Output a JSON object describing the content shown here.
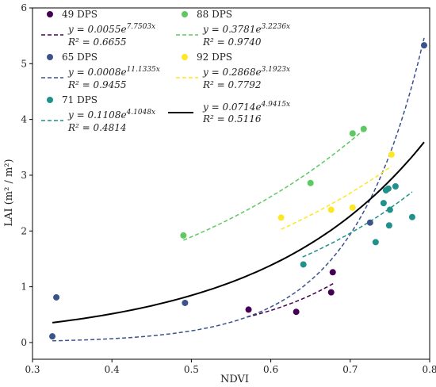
{
  "chart_data": {
    "type": "scatter",
    "xlabel": "NDVI",
    "ylabel": "LAI (m² / m²)",
    "xlim": [
      0.3,
      0.8
    ],
    "ylim": [
      -0.3,
      6.0
    ],
    "x_ticks": [
      "0.3",
      "0.4",
      "0.5",
      "0.6",
      "0.7",
      "0.8"
    ],
    "y_ticks": [
      "0",
      "1",
      "2",
      "3",
      "4",
      "5",
      "6"
    ],
    "legend_position": "upper-left",
    "grid": false,
    "series": [
      {
        "name": "49 DPS",
        "color": "#440154",
        "eq_prefix": "y = 0.0055e",
        "eq_exp": "7.7503x",
        "r2": "R² = 0.6655",
        "a": 0.0055,
        "b": 7.7503,
        "fit_range": [
          0.57,
          0.68
        ],
        "x": [
          0.572,
          0.632,
          0.676,
          0.678
        ],
        "y": [
          0.59,
          0.55,
          0.9,
          1.26
        ]
      },
      {
        "name": "65 DPS",
        "color": "#3b528b",
        "eq_prefix": "y = 0.0008e",
        "eq_exp": "11.1335x",
        "r2": "R² = 0.9455",
        "a": 0.0008,
        "b": 11.1335,
        "fit_range": [
          0.325,
          0.793
        ],
        "x": [
          0.325,
          0.33,
          0.492,
          0.725,
          0.793
        ],
        "y": [
          0.11,
          0.81,
          0.71,
          2.15,
          5.33
        ]
      },
      {
        "name": "71 DPS",
        "color": "#21918c",
        "eq_prefix": "y = 0.1108e",
        "eq_exp": "4.1048x",
        "r2": "R² = 0.4814",
        "a": 0.1108,
        "b": 4.1048,
        "fit_range": [
          0.64,
          0.778
        ],
        "x": [
          0.641,
          0.732,
          0.742,
          0.745,
          0.748,
          0.749,
          0.75,
          0.757,
          0.778
        ],
        "y": [
          1.4,
          1.8,
          2.5,
          2.73,
          2.76,
          2.1,
          2.38,
          2.8,
          2.25
        ]
      },
      {
        "name": "88 DPS",
        "color": "#5ec962",
        "eq_prefix": "y = 0.3781e",
        "eq_exp": "3.2236x",
        "r2": "R² = 0.9740",
        "a": 0.3781,
        "b": 3.2236,
        "fit_range": [
          0.49,
          0.717
        ],
        "x": [
          0.49,
          0.65,
          0.703,
          0.717
        ],
        "y": [
          1.92,
          2.86,
          3.75,
          3.83
        ]
      },
      {
        "name": "92 DPS",
        "color": "#fde725",
        "eq_prefix": "y = 0.2868e",
        "eq_exp": "3.1923x",
        "r2": "R² = 0.7792",
        "a": 0.2868,
        "b": 3.1923,
        "fit_range": [
          0.613,
          0.752
        ],
        "x": [
          0.613,
          0.676,
          0.703,
          0.752
        ],
        "y": [
          2.24,
          2.38,
          2.42,
          3.37
        ]
      }
    ],
    "overall_fit": {
      "color": "#000000",
      "eq_prefix": "y = 0.0714e",
      "eq_exp": "4.9415x",
      "r2": "R² = 0.5116",
      "a": 0.0714,
      "b": 4.9415,
      "fit_range": [
        0.325,
        0.793
      ]
    }
  }
}
